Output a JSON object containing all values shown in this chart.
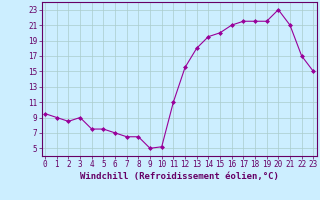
{
  "x": [
    0,
    1,
    2,
    3,
    4,
    5,
    6,
    7,
    8,
    9,
    10,
    11,
    12,
    13,
    14,
    15,
    16,
    17,
    18,
    19,
    20,
    21,
    22,
    23
  ],
  "y": [
    9.5,
    9.0,
    8.5,
    9.0,
    7.5,
    7.5,
    7.0,
    6.5,
    6.5,
    5.0,
    5.2,
    11.0,
    15.5,
    18.0,
    19.5,
    20.0,
    21.0,
    21.5,
    21.5,
    21.5,
    23.0,
    21.0,
    17.0,
    15.0
  ],
  "line_color": "#990099",
  "marker": "D",
  "marker_size": 2,
  "background_color": "#cceeff",
  "grid_color": "#aacccc",
  "xlabel": "Windchill (Refroidissement éolien,°C)",
  "xlabel_fontsize": 6.5,
  "yticks": [
    5,
    7,
    9,
    11,
    13,
    15,
    17,
    19,
    21,
    23
  ],
  "xticks": [
    0,
    1,
    2,
    3,
    4,
    5,
    6,
    7,
    8,
    9,
    10,
    11,
    12,
    13,
    14,
    15,
    16,
    17,
    18,
    19,
    20,
    21,
    22,
    23
  ],
  "ylim": [
    4,
    24
  ],
  "xlim": [
    -0.3,
    23.3
  ],
  "tick_fontsize": 5.5,
  "axis_color": "#660066",
  "spine_color": "#660066"
}
